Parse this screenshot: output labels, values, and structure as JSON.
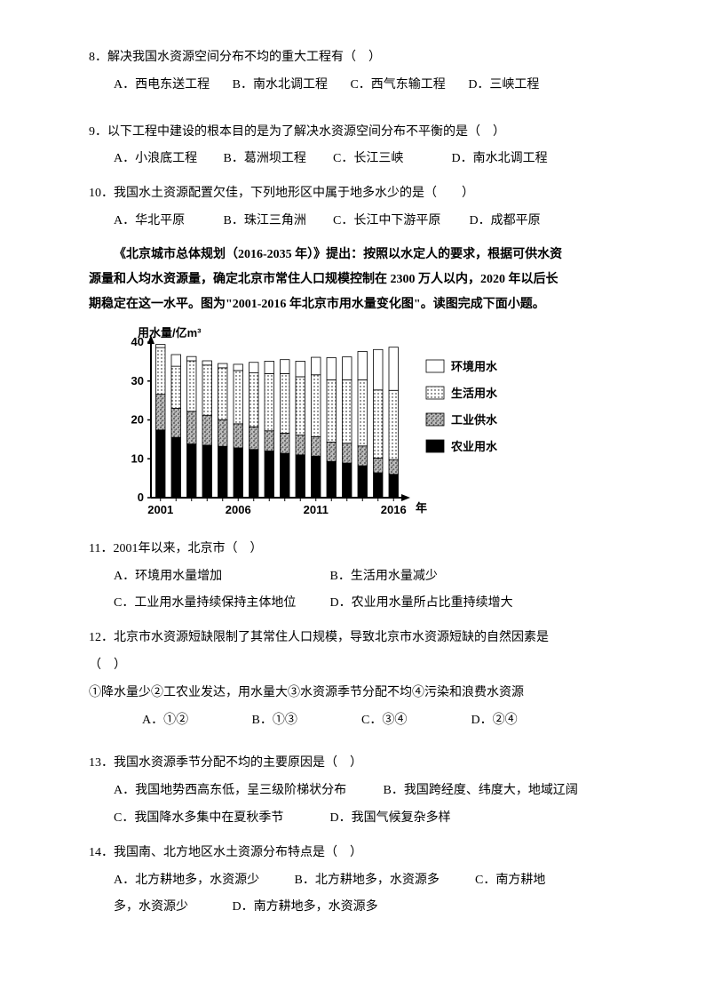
{
  "q8": {
    "stem": "8．解决我国水资源空间分布不均的重大工程有（　）",
    "optA": "A．西电东送工程",
    "optB": "B．南水北调工程",
    "optC": "C．西气东输工程",
    "optD": "D．三峡工程"
  },
  "q9": {
    "stem": "9．以下工程中建设的根本目的是为了解决水资源空间分布不平衡的是（　）",
    "optA": "A．小浪底工程",
    "optB": "B．葛洲坝工程",
    "optC": "C．长江三峡",
    "optD": "D．南水北调工程"
  },
  "q10": {
    "stem": "10．我国水土资源配置欠佳，下列地形区中属于地多水少的是（　　）",
    "optA": "A．华北平原",
    "optB": "B．珠江三角洲",
    "optC": "C．长江中下游平原",
    "optD": "D．成都平原"
  },
  "context": {
    "p1": "《北京城市总体规划（2016-2035 年）》提出：按照以水定人的要求，根据可供水资",
    "p2": "源量和人均水资源量，确定北京市常住人口规模控制在 2300 万人以内，2020 年以后长",
    "p3": "期稳定在这一水平。图为\"2001-2016 年北京市用水量变化图\"。读图完成下面小题。"
  },
  "chart": {
    "y_title": "用水量/亿m³",
    "x_title": "年",
    "ylim": [
      0,
      40
    ],
    "ytick_step": 10,
    "yticks": [
      "0",
      "10",
      "20",
      "30",
      "40"
    ],
    "x_labels": [
      "2001",
      "2006",
      "2011",
      "2016"
    ],
    "years_count": 16,
    "background_color": "#ffffff",
    "axis_color": "#000000",
    "legend": [
      {
        "label": "环境用水",
        "fill": "#ffffff",
        "pattern": "none"
      },
      {
        "label": "生活用水",
        "fill": "#ffffff",
        "pattern": "dots"
      },
      {
        "label": "工业供水",
        "fill": "#888888",
        "pattern": "gravel"
      },
      {
        "label": "农业用水",
        "fill": "#000000",
        "pattern": "solid"
      }
    ],
    "series": {
      "agri": [
        17.4,
        15.5,
        13.8,
        13.5,
        13.2,
        12.8,
        12.4,
        12.0,
        11.4,
        11.0,
        10.7,
        9.3,
        8.9,
        8.2,
        6.4,
        6.0
      ],
      "indus": [
        9.2,
        7.5,
        8.4,
        7.7,
        6.8,
        6.2,
        5.8,
        5.2,
        5.2,
        5.1,
        5.0,
        5.0,
        5.1,
        5.1,
        3.8,
        3.8
      ],
      "life": [
        12.0,
        10.8,
        13.0,
        12.9,
        13.4,
        13.7,
        13.9,
        14.7,
        15.3,
        15.0,
        15.9,
        16.0,
        16.3,
        17.0,
        17.5,
        17.8
      ],
      "env": [
        0.8,
        3.0,
        1.1,
        1.1,
        1.1,
        1.6,
        2.7,
        3.2,
        3.6,
        4.0,
        4.5,
        5.7,
        5.9,
        7.3,
        10.4,
        11.1
      ]
    },
    "bar_width_ratio": 0.6
  },
  "q11": {
    "stem": "11．2001年以来，北京市（　）",
    "optA": "A．环境用水量增加",
    "optB": "B．生活用水量减少",
    "optC": "C．工业用水量持续保持主体地位",
    "optD": "D．农业用水量所占比重持续增大"
  },
  "q12": {
    "stem1": "12．北京市水资源短缺限制了其常住人口规模，导致北京市水资源短缺的自然因素是",
    "stem2": "（　）",
    "items": "①降水量少②工农业发达，用水量大③水资源季节分配不均④污染和浪费水资源",
    "optA": "A．①②",
    "optB": "B．①③",
    "optC": "C．③④",
    "optD": "D．②④"
  },
  "q13": {
    "stem": "13．我国水资源季节分配不均的主要原因是（　）",
    "optA": "A．我国地势西高东低，呈三级阶梯状分布",
    "optB": "B．我国跨经度、纬度大，地域辽阔",
    "optC": "C．我国降水多集中在夏秋季节",
    "optD": "D．我国气候复杂多样"
  },
  "q14": {
    "stem": "14．我国南、北方地区水土资源分布特点是（　）",
    "optA": "A．北方耕地多，水资源少",
    "optB": "B．北方耕地多，水资源多",
    "optC": "C．南方耕地",
    "optC2": "多，水资源少",
    "optD": "D．南方耕地多，水资源多"
  }
}
